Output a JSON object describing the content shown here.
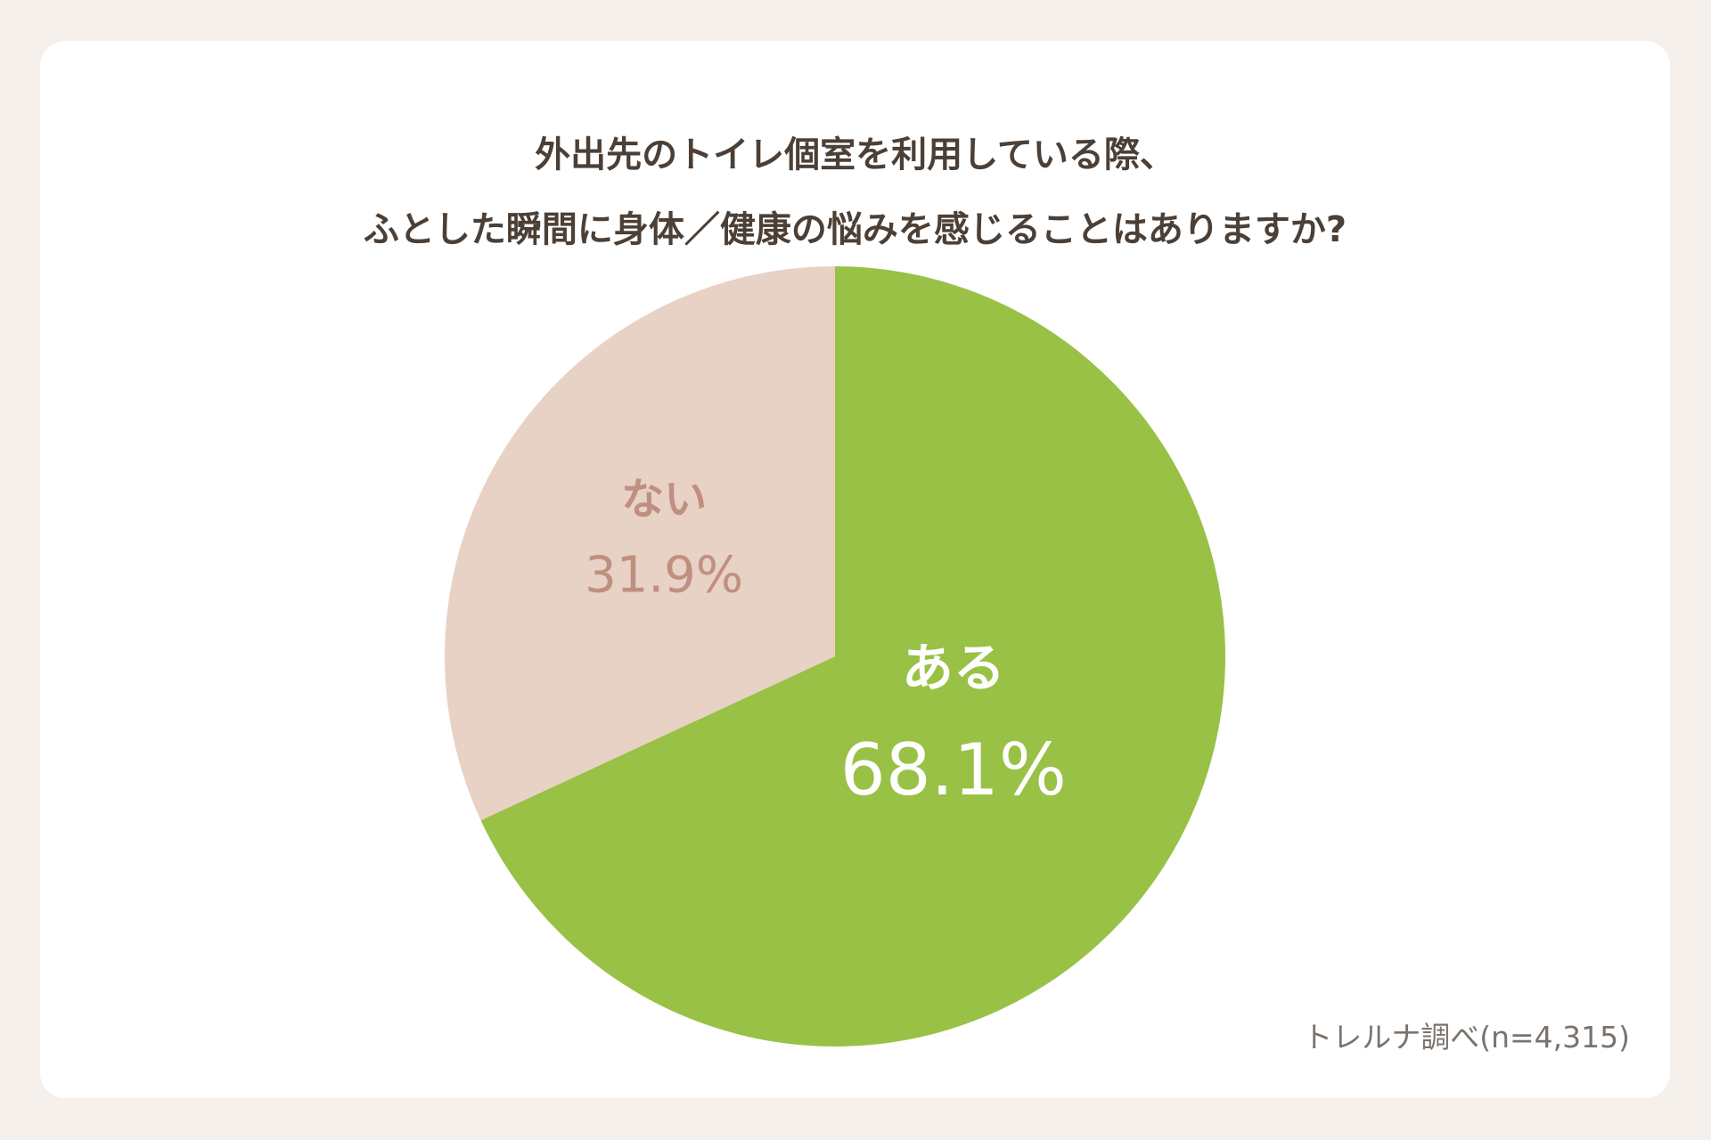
{
  "title_lines": [
    "外出先のトイレ個室を利用している際、",
    "ふとした瞬間に身体／健康の悩みを感じることはありますか?"
  ],
  "source": "トレルナ調べ(n=4,315)",
  "colors": {
    "background": "#f5f0eb",
    "card": "#ffffff",
    "title": "#4b3f36",
    "aru": "#99c145",
    "nai": "#e8d1c5",
    "aru_label": "#ffffff",
    "nai_label": "#bf8f80"
  },
  "chart_data": {
    "type": "pie",
    "slices": [
      {
        "label": "ある",
        "value": 68.1,
        "display": "68.1%",
        "color": "#99c145",
        "label_color": "#ffffff"
      },
      {
        "label": "ない",
        "value": 31.9,
        "display": "31.9%",
        "color": "#e8d1c5",
        "label_color": "#bf8f80"
      }
    ],
    "start_angle": "12 o'clock",
    "direction": "clockwise",
    "legend": "none"
  }
}
